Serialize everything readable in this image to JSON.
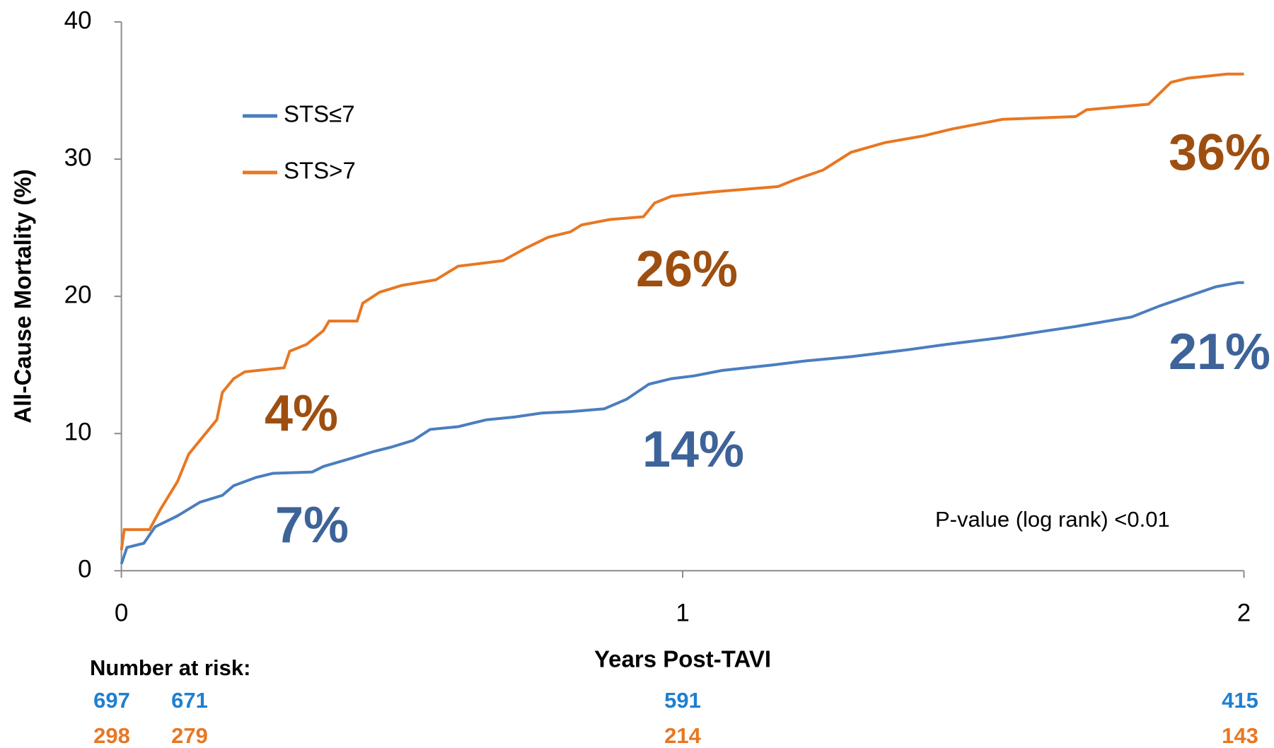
{
  "chart_data": {
    "type": "line",
    "x_label": "Years Post-TAVI",
    "y_label": "All-Cause Mortality (%)",
    "xlim": [
      0,
      2
    ],
    "xticks": [
      0,
      1,
      2
    ],
    "ylim": [
      0,
      40
    ],
    "yticks": [
      0,
      10,
      20,
      30,
      40
    ],
    "grid": false,
    "legend": "upper left",
    "series": [
      {
        "name": "STS≤7",
        "color": "#4a7ebf",
        "x": [
          0,
          0.01,
          0.04,
          0.06,
          0.1,
          0.14,
          0.18,
          0.2,
          0.24,
          0.27,
          0.34,
          0.36,
          0.41,
          0.45,
          0.48,
          0.52,
          0.55,
          0.6,
          0.65,
          0.7,
          0.75,
          0.8,
          0.86,
          0.9,
          0.94,
          0.98,
          1.02,
          1.07,
          1.16,
          1.22,
          1.3,
          1.4,
          1.47,
          1.57,
          1.65,
          1.7,
          1.8,
          1.85,
          1.9,
          1.95,
          1.99,
          2
        ],
        "values": [
          0.5,
          1.7,
          2,
          3.2,
          4,
          5,
          5.5,
          6.2,
          6.8,
          7.1,
          7.2,
          7.6,
          8.2,
          8.7,
          9,
          9.5,
          10.3,
          10.5,
          11,
          11.2,
          11.5,
          11.6,
          11.8,
          12.5,
          13.6,
          14,
          14.2,
          14.6,
          15,
          15.3,
          15.6,
          16.1,
          16.5,
          17,
          17.5,
          17.8,
          18.5,
          19.3,
          20,
          20.7,
          21,
          21
        ]
      },
      {
        "name": "STS>7",
        "color": "#e87722",
        "x": [
          0,
          0.005,
          0.05,
          0.07,
          0.1,
          0.12,
          0.15,
          0.17,
          0.18,
          0.2,
          0.22,
          0.29,
          0.3,
          0.33,
          0.36,
          0.37,
          0.42,
          0.43,
          0.46,
          0.5,
          0.56,
          0.6,
          0.68,
          0.72,
          0.76,
          0.8,
          0.82,
          0.87,
          0.93,
          0.95,
          0.98,
          1.05,
          1.17,
          1.2,
          1.25,
          1.3,
          1.36,
          1.43,
          1.48,
          1.57,
          1.7,
          1.72,
          1.83,
          1.87,
          1.9,
          1.97,
          2
        ],
        "values": [
          1.5,
          3,
          3,
          4.5,
          6.5,
          8.5,
          10,
          11,
          13,
          14,
          14.5,
          14.8,
          16,
          16.5,
          17.5,
          18.2,
          18.2,
          19.5,
          20.3,
          20.8,
          21.2,
          22.2,
          22.6,
          23.5,
          24.3,
          24.7,
          25.2,
          25.6,
          25.8,
          26.8,
          27.3,
          27.6,
          28,
          28.5,
          29.2,
          30.5,
          31.2,
          31.7,
          32.2,
          32.9,
          33.1,
          33.6,
          34,
          35.6,
          35.9,
          36.2,
          36.2
        ]
      }
    ],
    "annotations": [
      {
        "text": "36%",
        "color": "#9e4f10"
      },
      {
        "text": "26%",
        "color": "#9e4f10"
      },
      {
        "text": "4%",
        "color": "#9e4f10"
      },
      {
        "text": "21%",
        "color": "#3d6399"
      },
      {
        "text": "14%",
        "color": "#3d6399"
      },
      {
        "text": "7%",
        "color": "#3d6399"
      }
    ],
    "note": "P-value (log rank) <0.01",
    "risk_table": {
      "title": "Number at risk:",
      "rows": [
        {
          "color": "#1f7fd0",
          "values": [
            697,
            671,
            591,
            415
          ]
        },
        {
          "color": "#e87722",
          "values": [
            298,
            279,
            214,
            143
          ]
        }
      ]
    }
  }
}
